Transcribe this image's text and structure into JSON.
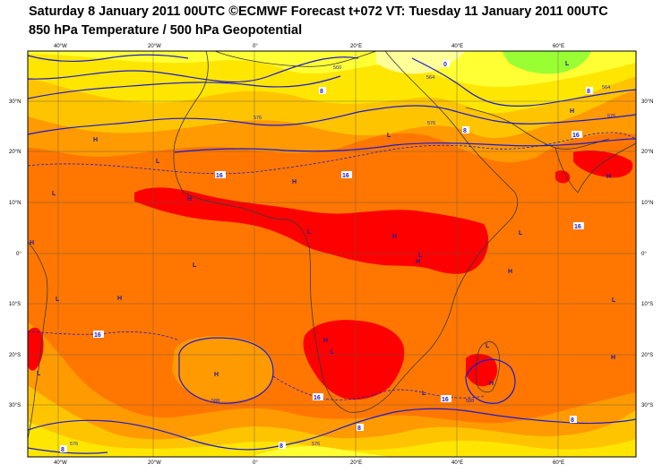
{
  "header": {
    "title_line1": "Saturday 8 January 2011 00UTC ©ECMWF Forecast t+072 VT: Tuesday 11 January 2011 00UTC",
    "title_line2": "850 hPa Temperature / 500 hPa Geopotential"
  },
  "axes": {
    "lon_labels": [
      "40°W",
      "20°W",
      "0°",
      "20°E",
      "40°E",
      "60°E"
    ],
    "lat_labels": [
      "30°N",
      "20°N",
      "10°N",
      "0°",
      "10°S",
      "20°S",
      "30°S"
    ]
  },
  "pressure_centres": {
    "highs": [
      "H",
      "H",
      "H",
      "H",
      "H",
      "H",
      "H",
      "H",
      "H",
      "H",
      "H",
      "H",
      "H",
      "H"
    ],
    "lows": [
      "L",
      "L",
      "L",
      "L",
      "L",
      "L",
      "L",
      "L",
      "L",
      "L",
      "L",
      "L",
      "L",
      "L"
    ]
  },
  "temperature_labels": [
    "0",
    "8",
    "8",
    "16",
    "16",
    "16",
    "16",
    "16",
    "16",
    "16",
    "8",
    "8",
    "8",
    "8",
    "8"
  ],
  "geopotential_labels": [
    "560",
    "564",
    "564",
    "576",
    "576",
    "588",
    "588",
    "576",
    "576",
    "576"
  ],
  "colors": {
    "temp_above_24": "#ff0000",
    "temp_16_24": "#ff7700",
    "temp_12_16": "#ff9a00",
    "temp_8_12": "#ffc400",
    "temp_4_8": "#ffe600",
    "temp_0_4": "#ffff33",
    "temp_minus4_0": "#ffff99",
    "temp_below_minus4": "#99ff33",
    "contour_color": "#1a1ad0",
    "coastline_color": "#3a3a3a"
  }
}
